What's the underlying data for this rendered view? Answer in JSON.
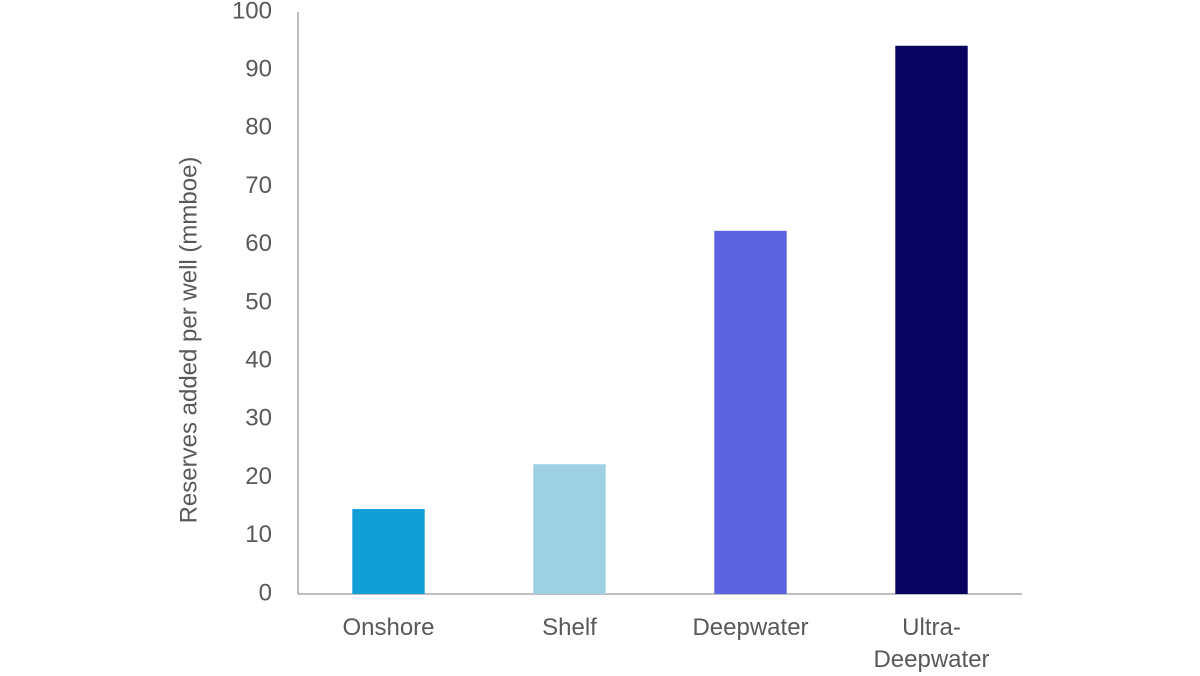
{
  "chart_data": {
    "type": "bar",
    "y_axis_label": "Reserves added per well (mmboe)",
    "categories": [
      "Onshore",
      "Shelf",
      "Deepwater",
      "Ultra-Deepwater"
    ],
    "values": [
      14.6,
      22.3,
      62.4,
      94.2
    ],
    "colors": [
      "#119fd6",
      "#9dd0e3",
      "#5b63e0",
      "#07035f"
    ],
    "ylim": [
      0,
      100
    ],
    "yticks": [
      0,
      10,
      20,
      30,
      40,
      50,
      60,
      70,
      80,
      90,
      100
    ],
    "grid": false
  }
}
